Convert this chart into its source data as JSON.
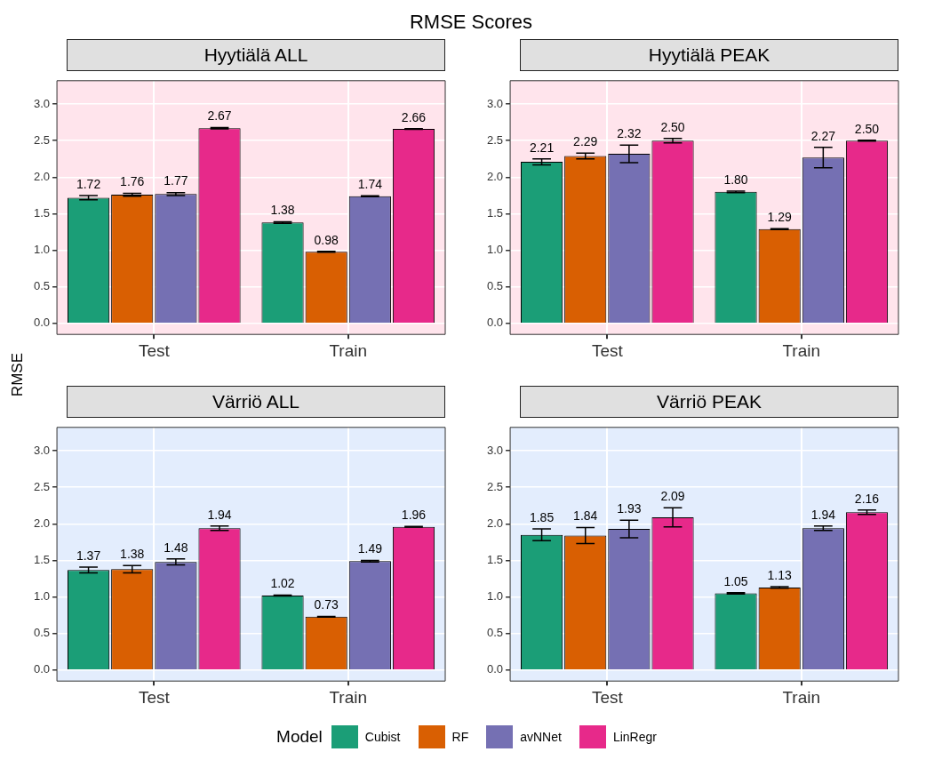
{
  "chart_data": [
    {
      "type": "bar",
      "title": "Hyytiälä ALL",
      "annotations": [
        "RMSE Scores"
      ],
      "ylabel": "RMSE",
      "legend": "bottom",
      "legend_title": "Model",
      "grid": true,
      "ylim": [
        -0.15,
        3.32
      ],
      "yticks": [
        {
          "value": 0,
          "label": "0.0"
        },
        0.5,
        {
          "value": 1,
          "label": "1.0"
        },
        1.5,
        {
          "value": 2,
          "label": "2.0"
        },
        2.5,
        {
          "value": 3,
          "label": "3.0"
        }
      ],
      "categories": [
        "Test",
        "Train"
      ],
      "series": [
        {
          "name": "Cubist",
          "color": "#1b9e77",
          "values": [
            1.72,
            1.38
          ],
          "value_labels": [
            "1.72",
            "1.38"
          ],
          "errors": [
            0.03,
            0.01
          ]
        },
        {
          "name": "RF",
          "color": "#d95f02",
          "values": [
            1.76,
            0.98
          ],
          "value_labels": [
            "1.76",
            "0.98"
          ],
          "errors": [
            0.02,
            0.005
          ]
        },
        {
          "name": "avNNet",
          "color": "#7570b3",
          "values": [
            1.77,
            1.74
          ],
          "value_labels": [
            "1.77",
            "1.74"
          ],
          "errors": [
            0.02,
            0.005
          ]
        },
        {
          "name": "LinRegr",
          "color": "#e7298a",
          "values": [
            2.67,
            2.66
          ],
          "value_labels": [
            "2.67",
            "2.66"
          ],
          "errors": [
            0.01,
            0.005
          ]
        }
      ]
    },
    {
      "type": "bar",
      "title": "Hyytiälä PEAK",
      "grid": true,
      "ylim": [
        -0.15,
        3.32
      ],
      "yticks": [
        {
          "value": 0,
          "label": "0.0"
        },
        0.5,
        {
          "value": 1,
          "label": "1.0"
        },
        1.5,
        {
          "value": 2,
          "label": "2.0"
        },
        2.5,
        {
          "value": 3,
          "label": "3.0"
        }
      ],
      "categories": [
        "Test",
        "Train"
      ],
      "series": [
        {
          "color": "#1b9e77",
          "values": [
            2.21,
            1.8
          ],
          "value_labels": [
            "2.21",
            "1.80"
          ],
          "errors": [
            0.04,
            0.01
          ]
        },
        {
          "color": "#d95f02",
          "values": [
            2.29,
            1.29
          ],
          "value_labels": [
            "2.29",
            "1.29"
          ],
          "errors": [
            0.04,
            0.005
          ]
        },
        {
          "color": "#7570b3",
          "values": [
            2.32,
            2.27
          ],
          "value_labels": [
            "2.32",
            "2.27"
          ],
          "errors": [
            0.12,
            0.14
          ]
        },
        {
          "color": "#e7298a",
          "values": [
            2.5,
            2.5
          ],
          "value_labels": [
            "2.50",
            "2.50"
          ],
          "errors": [
            0.03,
            0.005
          ]
        }
      ]
    },
    {
      "type": "bar",
      "title": "Värriö ALL",
      "grid": true,
      "ylim": [
        -0.15,
        3.32
      ],
      "yticks": [
        {
          "value": 0,
          "label": "0.0"
        },
        0.5,
        {
          "value": 1,
          "label": "1.0"
        },
        1.5,
        {
          "value": 2,
          "label": "2.0"
        },
        2.5,
        {
          "value": 3,
          "label": "3.0"
        }
      ],
      "categories": [
        "Test",
        "Train"
      ],
      "series": [
        {
          "color": "#1b9e77",
          "values": [
            1.37,
            1.02
          ],
          "value_labels": [
            "1.37",
            "1.02"
          ],
          "errors": [
            0.04,
            0.005
          ]
        },
        {
          "color": "#d95f02",
          "values": [
            1.38,
            0.73
          ],
          "value_labels": [
            "1.38",
            "0.73"
          ],
          "errors": [
            0.05,
            0.005
          ]
        },
        {
          "color": "#7570b3",
          "values": [
            1.48,
            1.49
          ],
          "value_labels": [
            "1.48",
            "1.49"
          ],
          "errors": [
            0.04,
            0.01
          ]
        },
        {
          "color": "#e7298a",
          "values": [
            1.94,
            1.96
          ],
          "value_labels": [
            "1.94",
            "1.96"
          ],
          "errors": [
            0.03,
            0.005
          ]
        }
      ]
    },
    {
      "type": "bar",
      "title": "Värriö PEAK",
      "grid": true,
      "ylim": [
        -0.15,
        3.32
      ],
      "yticks": [
        {
          "value": 0,
          "label": "0.0"
        },
        0.5,
        {
          "value": 1,
          "label": "1.0"
        },
        1.5,
        {
          "value": 2,
          "label": "2.0"
        },
        2.5,
        {
          "value": 3,
          "label": "3.0"
        }
      ],
      "categories": [
        "Test",
        "Train"
      ],
      "series": [
        {
          "color": "#1b9e77",
          "values": [
            1.85,
            1.05
          ],
          "value_labels": [
            "1.85",
            "1.05"
          ],
          "errors": [
            0.08,
            0.01
          ]
        },
        {
          "color": "#d95f02",
          "values": [
            1.84,
            1.13
          ],
          "value_labels": [
            "1.84",
            "1.13"
          ],
          "errors": [
            0.11,
            0.01
          ]
        },
        {
          "color": "#7570b3",
          "values": [
            1.93,
            1.94
          ],
          "value_labels": [
            "1.93",
            "1.94"
          ],
          "errors": [
            0.12,
            0.03
          ]
        },
        {
          "color": "#e7298a",
          "values": [
            2.09,
            2.16
          ],
          "value_labels": [
            "2.09",
            "2.16"
          ],
          "errors": [
            0.13,
            0.03
          ]
        }
      ]
    }
  ]
}
